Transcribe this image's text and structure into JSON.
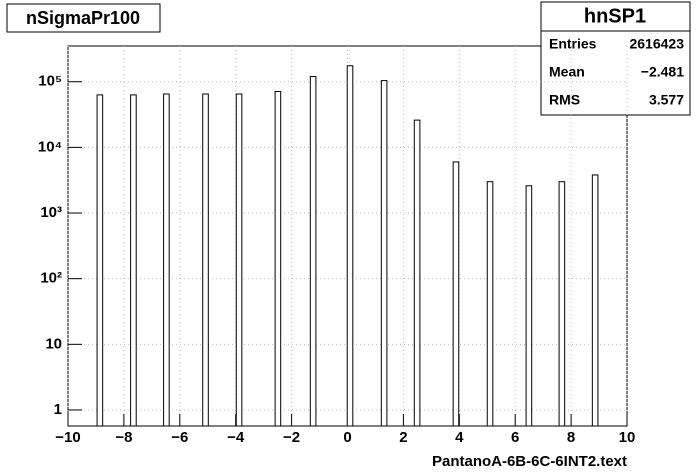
{
  "chart_data": {
    "type": "bar",
    "title": "nSigmaPr100",
    "x_label": "PantanoA-6B-6C-6INT2.text",
    "x": [
      -8.86,
      -7.66,
      -6.48,
      -5.08,
      -3.88,
      -2.49,
      -1.23,
      0.09,
      1.31,
      2.49,
      3.88,
      5.1,
      6.49,
      7.67,
      8.86
    ],
    "values": [
      63000,
      63000,
      65000,
      65000,
      65000,
      71000,
      120000,
      175000,
      104000,
      26000,
      6000,
      3000,
      2600,
      3000,
      3800
    ],
    "bar_width": 0.2,
    "color": "#ffffff",
    "edge_color": "#000000",
    "xlim": [
      -10,
      10
    ],
    "xticks": [
      {
        "value": -10,
        "label": "−10"
      },
      {
        "value": -8,
        "label": "−8"
      },
      {
        "value": -6,
        "label": "−6"
      },
      {
        "value": -4,
        "label": "−4"
      },
      {
        "value": -2,
        "label": "−2"
      },
      0,
      2,
      4,
      6,
      8,
      10
    ],
    "ylim": [
      0.57,
      350000
    ],
    "y_scale": "log",
    "yticks": [
      1,
      10,
      {
        "value": 100,
        "label": "10²"
      },
      {
        "value": 1000,
        "label": "10³"
      },
      {
        "value": 10000,
        "label": "10⁴"
      },
      {
        "value": 100000,
        "label": "10⁵"
      }
    ],
    "grid": true,
    "stats": {
      "title": "hnSP1",
      "rows": [
        [
          "Entries",
          "2616423"
        ],
        [
          "Mean",
          "−2.481"
        ],
        [
          "RMS",
          "3.577"
        ]
      ]
    }
  }
}
